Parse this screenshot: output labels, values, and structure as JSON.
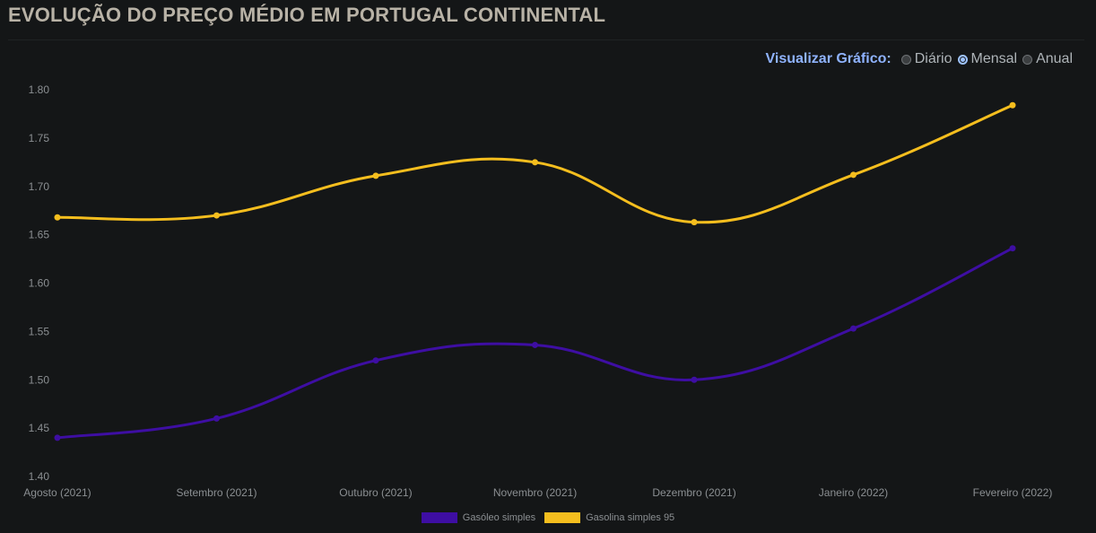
{
  "page_title": "EVOLUÇÃO DO PREÇO MÉDIO EM PORTUGAL CONTINENTAL",
  "controls": {
    "label": "Visualizar Gráfico:",
    "options": [
      {
        "label": "Diário",
        "checked": false
      },
      {
        "label": "Mensal",
        "checked": true
      },
      {
        "label": "Anual",
        "checked": false
      }
    ]
  },
  "chart_data": {
    "type": "line",
    "categories": [
      "Agosto (2021)",
      "Setembro (2021)",
      "Outubro (2021)",
      "Novembro (2021)",
      "Dezembro (2021)",
      "Janeiro (2022)",
      "Fevereiro (2022)"
    ],
    "series": [
      {
        "name": "Gasóleo simples",
        "color": "#3e0ea3",
        "values": [
          1.44,
          1.46,
          1.52,
          1.536,
          1.5,
          1.553,
          1.636
        ]
      },
      {
        "name": "Gasolina simples 95",
        "color": "#f5be1e",
        "values": [
          1.668,
          1.67,
          1.711,
          1.725,
          1.663,
          1.712,
          1.784
        ]
      }
    ],
    "ylim": [
      1.4,
      1.8
    ],
    "yticks": [
      "1.40",
      "1.45",
      "1.50",
      "1.55",
      "1.60",
      "1.65",
      "1.70",
      "1.75",
      "1.80"
    ],
    "grid": false,
    "legend_position": "bottom"
  }
}
